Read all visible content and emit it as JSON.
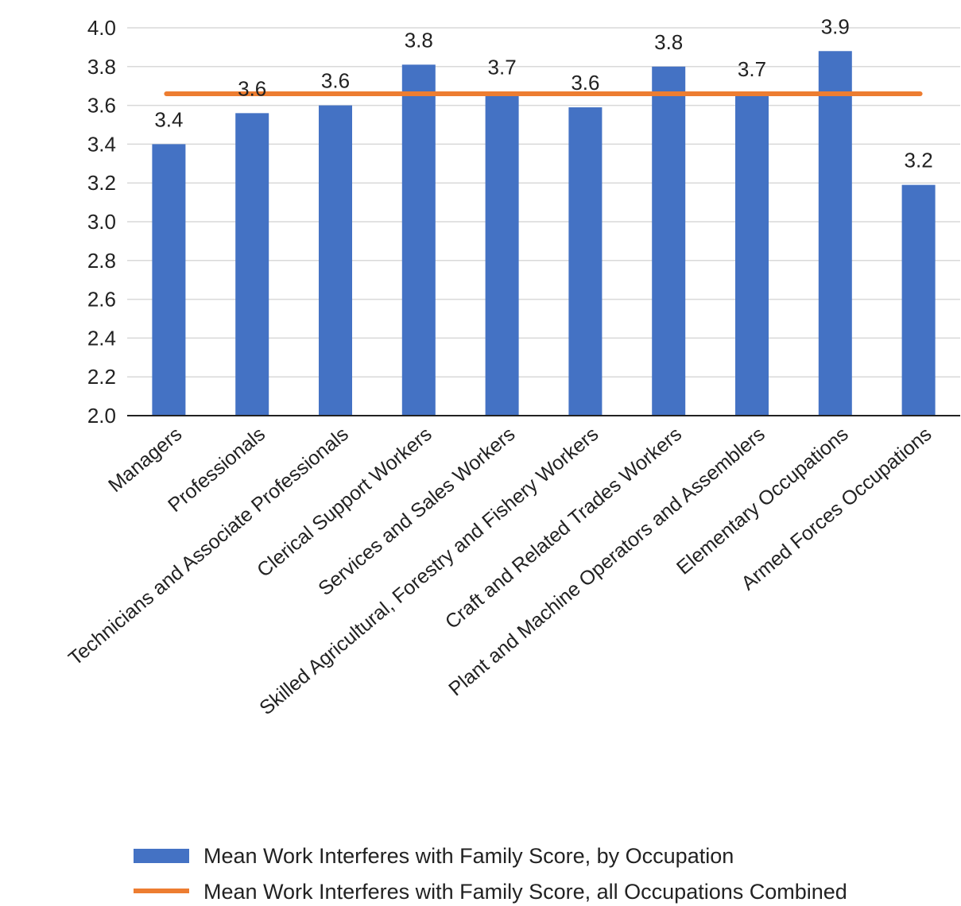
{
  "chart_data": {
    "type": "bar",
    "categories": [
      "Managers",
      "Professionals",
      "Technicians and Associate Professionals",
      "Clerical Support Workers",
      "Services and Sales Workers",
      "Skilled Agricultural, Forestry and Fishery Workers",
      "Craft and Related Trades Workers",
      "Plant and Machine Operators and Assemblers",
      "Elementary Occupations",
      "Armed Forces Occupations"
    ],
    "values": [
      3.4,
      3.56,
      3.6,
      3.81,
      3.67,
      3.59,
      3.8,
      3.66,
      3.88,
      3.19
    ],
    "data_labels": [
      "3.4",
      "3.6",
      "3.6",
      "3.8",
      "3.7",
      "3.6",
      "3.8",
      "3.7",
      "3.9",
      "3.2"
    ],
    "reference_line": {
      "name": "Mean Work Interferes with Family Score, all Occupations Combined",
      "value": 3.66
    },
    "series": [
      {
        "name": "Mean Work Interferes with Family Score, by Occupation",
        "values": [
          3.4,
          3.56,
          3.6,
          3.81,
          3.67,
          3.59,
          3.8,
          3.66,
          3.88,
          3.19
        ]
      }
    ],
    "ylim": [
      2.0,
      4.0
    ],
    "yticks": [
      "2.0",
      "2.2",
      "2.4",
      "2.6",
      "2.8",
      "3.0",
      "3.2",
      "3.4",
      "3.6",
      "3.8",
      "4.0"
    ],
    "grid": true,
    "legend_position": "bottom",
    "colors": {
      "bar": "#4472C4",
      "line": "#ED7D31",
      "grid": "#D9D9D9",
      "axis": "#222222"
    }
  }
}
